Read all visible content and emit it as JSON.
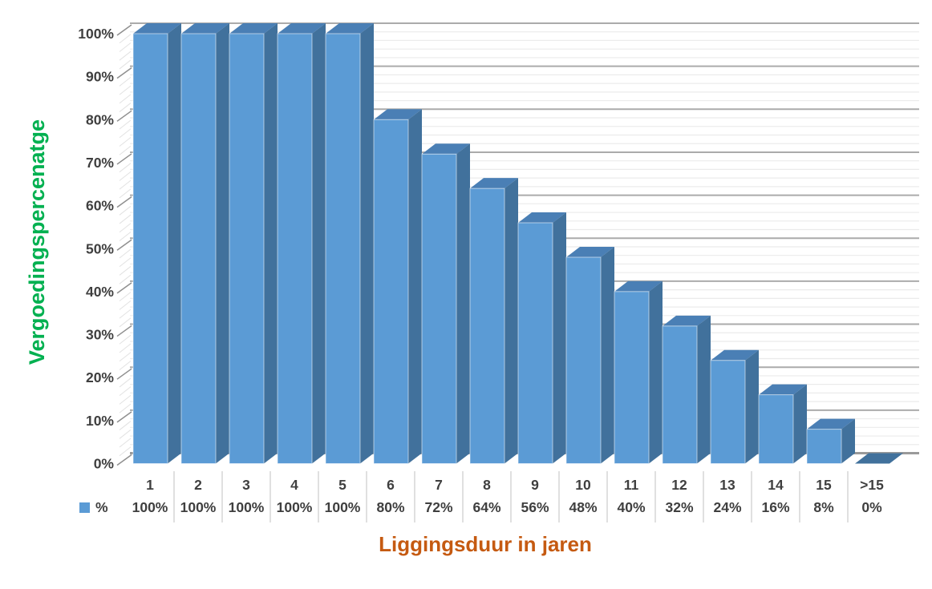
{
  "chart_data": {
    "type": "bar",
    "variant": "3d-clustered-column",
    "title": "",
    "xlabel": "Liggingsduur in jaren",
    "ylabel": "Vergoedingspercenatge",
    "categories": [
      "1",
      "2",
      "3",
      "4",
      "5",
      "6",
      "7",
      "8",
      "9",
      "10",
      "11",
      "12",
      "13",
      "14",
      "15",
      ">15"
    ],
    "series": [
      {
        "name": "%",
        "values": [
          100,
          100,
          100,
          100,
          100,
          80,
          72,
          64,
          56,
          48,
          40,
          32,
          24,
          16,
          8,
          0
        ]
      }
    ],
    "value_labels": [
      "100%",
      "100%",
      "100%",
      "100%",
      "100%",
      "80%",
      "72%",
      "64%",
      "56%",
      "48%",
      "40%",
      "32%",
      "24%",
      "16%",
      "8%",
      "0%"
    ],
    "ylim": [
      0,
      100
    ],
    "y_tick_labels": [
      "0%",
      "10%",
      "20%",
      "30%",
      "40%",
      "50%",
      "60%",
      "70%",
      "80%",
      "90%",
      "100%"
    ],
    "y_major_step": 10,
    "y_minor_step": 2,
    "grid": "horizontal major + minor",
    "legend": {
      "position": "bottom-left",
      "marker": "square",
      "label": "%"
    },
    "data_table_shown": true
  },
  "colors": {
    "background": "#ffffff",
    "bar_front": "#5B9BD5",
    "bar_side": "#41719C",
    "bar_top": "#4A7FB5",
    "bar_zero_floor": "#41719C",
    "major_gridline": "#ababab",
    "baseline": "#9a9a9a",
    "minor_gridline": "#ebebeb",
    "major_tick": "#8f8f8f",
    "minor_tick": "#e2e2e2",
    "table_divider": "#d6d6d6",
    "label_text": "#3f3f3f",
    "xlabel_text": "#C55A11",
    "ylabel_text": "#00B050"
  }
}
